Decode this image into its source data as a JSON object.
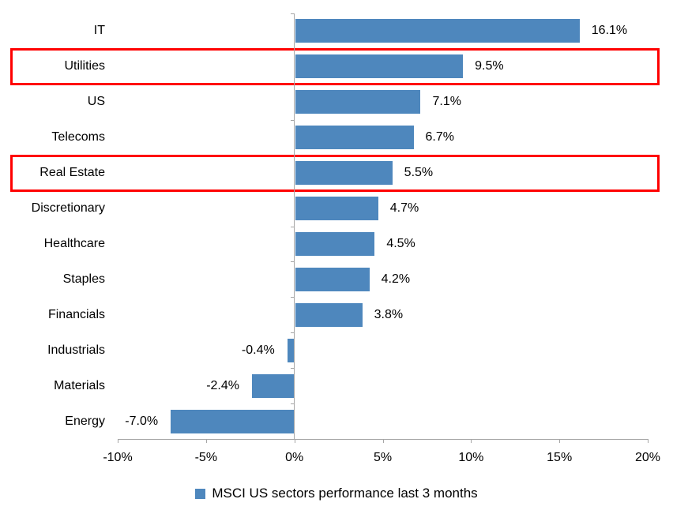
{
  "chart_data": {
    "type": "bar",
    "orientation": "horizontal",
    "title": "",
    "xlabel": "",
    "ylabel": "",
    "categories": [
      "IT",
      "Utilities",
      "US",
      "Telecoms",
      "Real Estate",
      "Discretionary",
      "Healthcare",
      "Staples",
      "Financials",
      "Industrials",
      "Materials",
      "Energy"
    ],
    "values": [
      16.1,
      9.5,
      7.1,
      6.7,
      5.5,
      4.7,
      4.5,
      4.2,
      3.8,
      -0.4,
      -2.4,
      -7.0
    ],
    "data_labels": [
      "16.1%",
      "9.5%",
      "7.1%",
      "6.7%",
      "5.5%",
      "4.7%",
      "4.5%",
      "4.2%",
      "3.8%",
      "-0.4%",
      "-2.4%",
      "-7.0%"
    ],
    "x_tick_values": [
      -10,
      -5,
      0,
      5,
      10,
      15,
      20
    ],
    "x_tick_labels": [
      "-10%",
      "-5%",
      "0%",
      "5%",
      "10%",
      "15%",
      "20%"
    ],
    "xlim": [
      -10,
      20
    ],
    "grid": false,
    "legend": {
      "position": "bottom",
      "label": "MSCI US sectors performance last 3 months"
    },
    "highlighted_categories": [
      "Utilities",
      "Real Estate"
    ],
    "bar_color": "#4E87BD",
    "highlight_box_color": "#FF0000",
    "axis_color": "#A6A6A6",
    "text_color": "#000000"
  }
}
